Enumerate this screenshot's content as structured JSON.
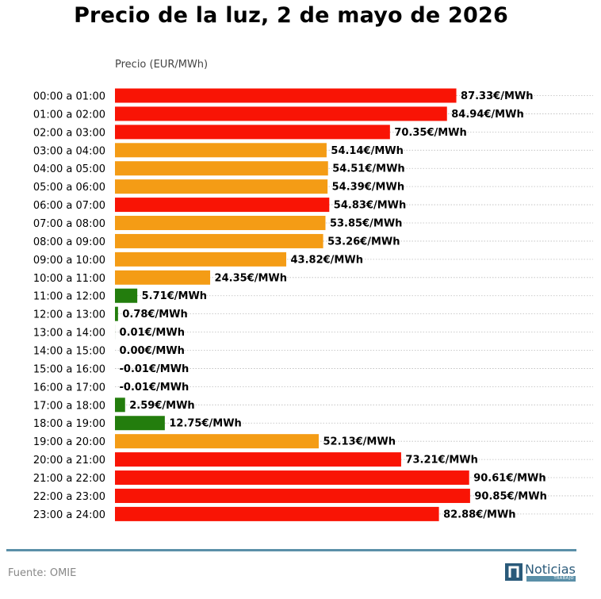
{
  "chart_data": {
    "type": "bar",
    "orientation": "horizontal",
    "title": "Precio de la luz, 2 de mayo de 2026",
    "xlabel": "Precio (EUR/MWh)",
    "ylabel": "",
    "value_suffix": "€/MWh",
    "xlim": [
      0,
      100
    ],
    "grid": "dotted horizontal lines",
    "categories": [
      "00:00 a 01:00",
      "01:00 a 02:00",
      "02:00 a 03:00",
      "03:00 a 04:00",
      "04:00 a 05:00",
      "05:00 a 06:00",
      "06:00 a 07:00",
      "07:00 a 08:00",
      "08:00 a 09:00",
      "09:00 a 10:00",
      "10:00 a 11:00",
      "11:00 a 12:00",
      "12:00 a 13:00",
      "13:00 a 14:00",
      "14:00 a 15:00",
      "15:00 a 16:00",
      "16:00 a 17:00",
      "17:00 a 18:00",
      "18:00 a 19:00",
      "19:00 a 20:00",
      "20:00 a 21:00",
      "21:00 a 22:00",
      "22:00 a 23:00",
      "23:00 a 24:00"
    ],
    "values": [
      87.33,
      84.94,
      70.35,
      54.14,
      54.51,
      54.39,
      54.83,
      53.85,
      53.26,
      43.82,
      24.35,
      5.71,
      0.78,
      0.01,
      0.0,
      -0.01,
      -0.01,
      2.59,
      12.75,
      52.13,
      73.21,
      90.61,
      90.85,
      82.88
    ],
    "value_labels": [
      "87.33€/MWh",
      "84.94€/MWh",
      "70.35€/MWh",
      "54.14€/MWh",
      "54.51€/MWh",
      "54.39€/MWh",
      "54.83€/MWh",
      "53.85€/MWh",
      "53.26€/MWh",
      "43.82€/MWh",
      "24.35€/MWh",
      "5.71€/MWh",
      "0.78€/MWh",
      "0.01€/MWh",
      "0.00€/MWh",
      "-0.01€/MWh",
      "-0.01€/MWh",
      "2.59€/MWh",
      "12.75€/MWh",
      "52.13€/MWh",
      "73.21€/MWh",
      "90.61€/MWh",
      "90.85€/MWh",
      "82.88€/MWh"
    ],
    "colors": [
      "red",
      "red",
      "red",
      "orange",
      "orange",
      "orange",
      "red",
      "orange",
      "orange",
      "orange",
      "orange",
      "green",
      "green",
      "green",
      "green",
      "green",
      "green",
      "green",
      "green",
      "orange",
      "red",
      "red",
      "red",
      "red"
    ],
    "palette": {
      "red": "#f91405",
      "orange": "#f49c15",
      "green": "#237d0d"
    }
  },
  "footer": {
    "source": "Fuente: OMIE",
    "logo_word": "Noticias",
    "logo_sub": "TRABAJO",
    "divider_color": "#5a8fa8"
  }
}
